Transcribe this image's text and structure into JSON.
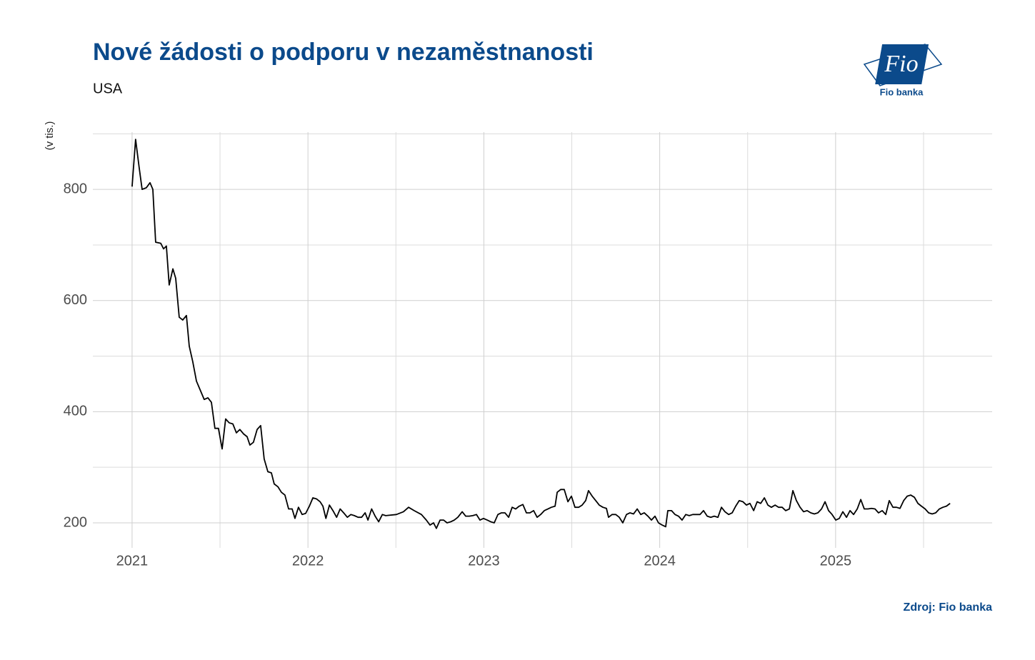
{
  "chart_data": {
    "type": "line",
    "title": "Nové žádosti o podporu v nezaměstnanosti",
    "subtitle": "USA",
    "y_label": "(v tis.)",
    "source": "Zdroj: Fio banka",
    "logo": {
      "mark": "Fio",
      "caption": "Fio banka"
    },
    "color": "#000000",
    "grid": true,
    "xlim": [
      2020.777,
      2025.89
    ],
    "ylim": [
      155,
      903
    ],
    "xticks": [
      2021,
      2022,
      2023,
      2024,
      2025
    ],
    "xminor": [
      2021.5,
      2022.5,
      2023.5,
      2024.5,
      2025.5
    ],
    "yticks": [
      200,
      400,
      600,
      800
    ],
    "yminor": [
      300,
      500,
      700,
      900
    ],
    "x": [
      2021.0,
      2021.02,
      2021.04,
      2021.057,
      2021.081,
      2021.102,
      2021.118,
      2021.134,
      2021.163,
      2021.179,
      2021.195,
      2021.211,
      2021.232,
      2021.248,
      2021.268,
      2021.288,
      2021.309,
      2021.325,
      2021.345,
      2021.366,
      2021.386,
      2021.41,
      2021.431,
      2021.451,
      2021.471,
      2021.491,
      2021.512,
      2021.532,
      2021.552,
      2021.573,
      2021.593,
      2021.613,
      2021.634,
      2021.654,
      2021.67,
      2021.69,
      2021.711,
      2021.731,
      2021.751,
      2021.772,
      2021.792,
      2021.808,
      2021.829,
      2021.849,
      2021.869,
      2021.89,
      2021.91,
      2021.926,
      2021.946,
      2021.967,
      2021.987,
      2022.008,
      2022.028,
      2022.049,
      2022.069,
      2022.085,
      2022.102,
      2022.122,
      2022.142,
      2022.163,
      2022.183,
      2022.203,
      2022.224,
      2022.244,
      2022.264,
      2022.285,
      2022.305,
      2022.325,
      2022.341,
      2022.362,
      2022.382,
      2022.402,
      2022.423,
      2022.442,
      2022.503,
      2022.543,
      2022.572,
      2022.604,
      2022.645,
      2022.673,
      2022.694,
      2022.714,
      2022.73,
      2022.751,
      2022.771,
      2022.791,
      2022.812,
      2022.832,
      2022.852,
      2022.877,
      2022.897,
      2022.917,
      2022.937,
      2022.958,
      2022.978,
      2022.998,
      2023.019,
      2023.039,
      2023.059,
      2023.08,
      2023.1,
      2023.12,
      2023.141,
      2023.161,
      2023.181,
      2023.201,
      2023.222,
      2023.242,
      2023.262,
      2023.283,
      2023.303,
      2023.323,
      2023.344,
      2023.364,
      2023.384,
      2023.405,
      2023.417,
      2023.437,
      2023.457,
      2023.478,
      2023.498,
      2023.518,
      2023.539,
      2023.559,
      2023.579,
      2023.595,
      2023.616,
      2023.636,
      2023.656,
      2023.677,
      2023.697,
      2023.709,
      2023.729,
      2023.75,
      2023.77,
      2023.79,
      2023.811,
      2023.831,
      2023.851,
      2023.872,
      2023.892,
      2023.912,
      2023.933,
      2023.953,
      2023.973,
      2023.993,
      2024.014,
      2024.034,
      2024.046,
      2024.067,
      2024.087,
      2024.107,
      2024.127,
      2024.148,
      2024.168,
      2024.188,
      2024.209,
      2024.229,
      2024.249,
      2024.27,
      2024.29,
      2024.31,
      2024.331,
      2024.351,
      2024.371,
      2024.392,
      2024.412,
      2024.432,
      2024.452,
      2024.473,
      2024.493,
      2024.513,
      2024.534,
      2024.554,
      2024.574,
      2024.595,
      2024.615,
      2024.635,
      2024.656,
      2024.676,
      2024.696,
      2024.716,
      2024.737,
      2024.757,
      2024.777,
      2024.798,
      2024.818,
      2024.838,
      2024.859,
      2024.879,
      2024.899,
      2024.92,
      2024.94,
      2024.96,
      2024.98,
      2025.001,
      2025.021,
      2025.041,
      2025.062,
      2025.082,
      2025.102,
      2025.123,
      2025.143,
      2025.163,
      2025.184,
      2025.204,
      2025.224,
      2025.244,
      2025.265,
      2025.285,
      2025.305,
      2025.326,
      2025.346,
      2025.366,
      2025.387,
      2025.407,
      2025.427,
      2025.448,
      2025.468,
      2025.488,
      2025.509,
      2025.529,
      2025.549,
      2025.569,
      2025.59,
      2025.61,
      2025.63,
      2025.651
    ],
    "values": [
      805,
      890,
      840,
      800,
      803,
      812,
      800,
      705,
      703,
      693,
      698,
      628,
      657,
      640,
      570,
      565,
      573,
      518,
      490,
      455,
      440,
      422,
      425,
      417,
      370,
      370,
      333,
      387,
      380,
      378,
      362,
      368,
      360,
      355,
      340,
      345,
      368,
      375,
      315,
      292,
      290,
      270,
      265,
      255,
      250,
      225,
      225,
      208,
      228,
      215,
      217,
      230,
      245,
      243,
      238,
      230,
      208,
      232,
      222,
      210,
      225,
      218,
      210,
      215,
      213,
      210,
      210,
      218,
      205,
      225,
      212,
      202,
      215,
      213,
      215,
      220,
      228,
      222,
      215,
      205,
      196,
      200,
      190,
      205,
      205,
      200,
      202,
      205,
      210,
      220,
      212,
      212,
      213,
      215,
      205,
      208,
      205,
      202,
      200,
      215,
      218,
      218,
      210,
      228,
      225,
      230,
      233,
      218,
      218,
      222,
      210,
      215,
      222,
      225,
      228,
      230,
      255,
      260,
      260,
      238,
      248,
      228,
      228,
      232,
      240,
      258,
      248,
      240,
      232,
      228,
      226,
      210,
      215,
      215,
      210,
      200,
      215,
      218,
      216,
      225,
      215,
      218,
      212,
      205,
      212,
      200,
      196,
      193,
      222,
      222,
      215,
      212,
      205,
      215,
      213,
      215,
      215,
      215,
      222,
      212,
      210,
      212,
      210,
      228,
      220,
      215,
      218,
      230,
      240,
      238,
      232,
      235,
      222,
      238,
      235,
      245,
      232,
      228,
      232,
      228,
      228,
      222,
      225,
      258,
      240,
      228,
      220,
      222,
      218,
      216,
      218,
      225,
      238,
      222,
      215,
      205,
      208,
      220,
      210,
      222,
      215,
      225,
      242,
      225,
      225,
      226,
      225,
      218,
      222,
      215,
      240,
      228,
      228,
      226,
      240,
      248,
      250,
      246,
      235,
      230,
      225,
      218,
      216,
      218,
      225,
      228,
      230,
      235
    ]
  }
}
